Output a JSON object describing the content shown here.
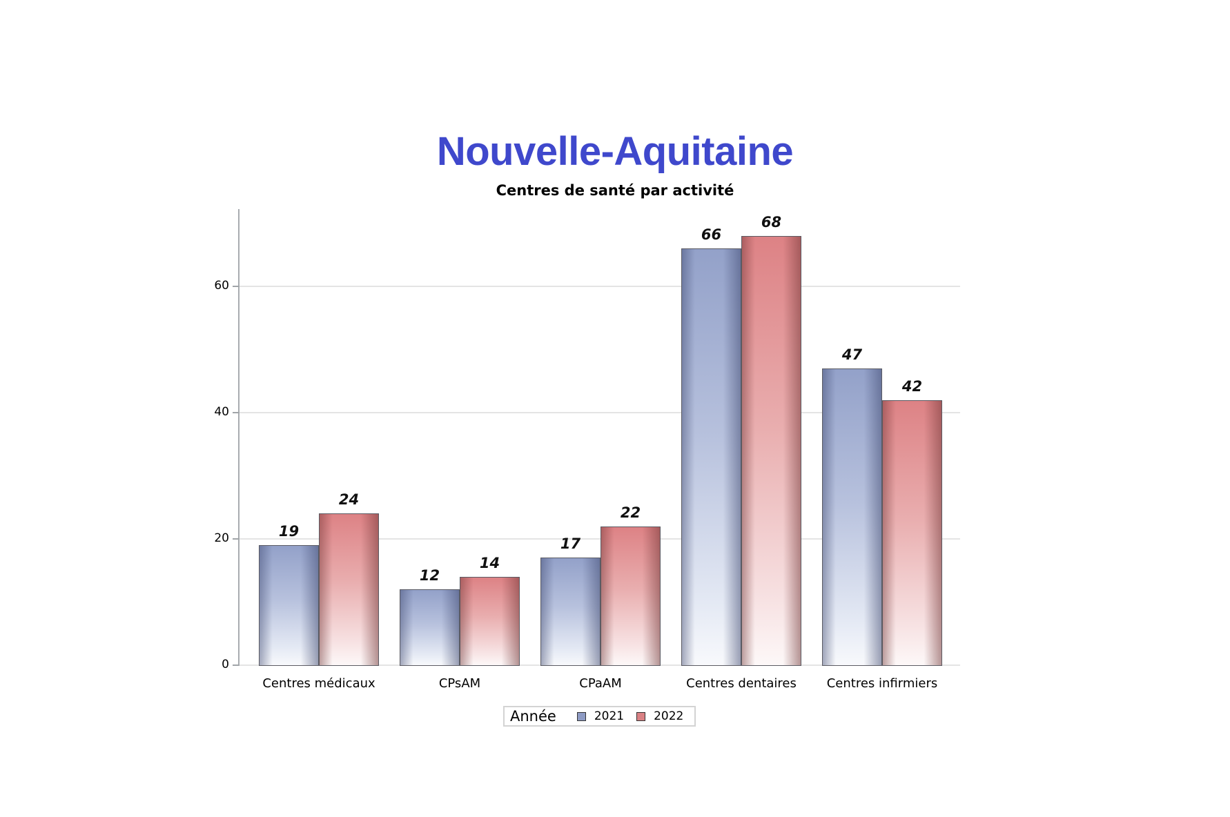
{
  "header": {
    "title": "Nouvelle-Aquitaine",
    "subtitle": "Centres de santé par activité"
  },
  "colors": {
    "title": "#3F48CC",
    "series_2021": "#8E9BC4",
    "series_2022": "#D98184",
    "gridline": "#E4E4E4"
  },
  "axis": {
    "y_ticks": [
      "0",
      "20",
      "40",
      "60"
    ]
  },
  "legend": {
    "title": "Année",
    "items": [
      {
        "label": "2021"
      },
      {
        "label": "2022"
      }
    ]
  },
  "chart_data": {
    "type": "bar",
    "title": "Nouvelle-Aquitaine",
    "subtitle": "Centres de santé par activité",
    "xlabel": "",
    "ylabel": "",
    "categories": [
      "Centres médicaux",
      "CPsAM",
      "CPaAM",
      "Centres dentaires",
      "Centres infirmiers"
    ],
    "series": [
      {
        "name": "2021",
        "values": [
          19,
          12,
          17,
          66,
          47
        ],
        "labels": [
          "19",
          "12",
          "17",
          "66",
          "47"
        ]
      },
      {
        "name": "2022",
        "values": [
          24,
          14,
          22,
          68,
          42
        ],
        "labels": [
          "24",
          "14",
          "22",
          "68",
          "42"
        ]
      }
    ],
    "ylim": [
      0,
      72
    ],
    "yticks": [
      0,
      20,
      40,
      60
    ],
    "grid": true,
    "legend_title": "Année",
    "legend_position": "bottom"
  }
}
